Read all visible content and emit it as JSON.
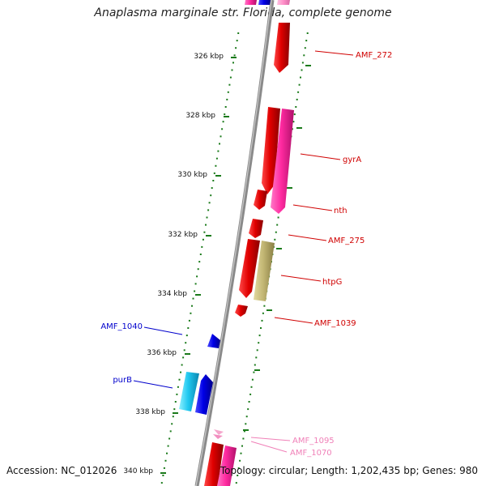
{
  "title": "Anaplasma marginale str. Florida, complete genome",
  "footer": {
    "accession": "Accession: NC_012026",
    "summary": "Topology: circular; Length: 1,202,435 bp; Genes: 980"
  },
  "colors": {
    "backbone": "#8a8a8a",
    "ticks": "#1a7a1a",
    "red_label": "#d00000",
    "blue_label": "#0000cc",
    "pink_label": "#f080b8"
  },
  "axis": {
    "unit": "kbp",
    "ticks": [
      "326 kbp",
      "328 kbp",
      "330 kbp",
      "332 kbp",
      "334 kbp",
      "336 kbp",
      "338 kbp",
      "340 kbp"
    ]
  },
  "genes": [
    {
      "name": "AMF_272",
      "strand": "reverse",
      "color": "red"
    },
    {
      "name": "gyrA",
      "strand": "forward",
      "color": "magenta"
    },
    {
      "name": "nth",
      "strand": "reverse",
      "color": "red"
    },
    {
      "name": "AMF_275",
      "strand": "reverse",
      "color": "red"
    },
    {
      "name": "htpG",
      "strand": "forward",
      "color": "olive"
    },
    {
      "name": "AMF_1039",
      "strand": "reverse",
      "color": "red"
    },
    {
      "name": "AMF_1040",
      "strand": "forward",
      "color": "blue"
    },
    {
      "name": "purB",
      "strand": "forward",
      "color": "cyan"
    },
    {
      "name": "AMF_1095",
      "strand": "forward",
      "color": "pink"
    },
    {
      "name": "AMF_1070",
      "strand": "forward",
      "color": "pink"
    }
  ]
}
